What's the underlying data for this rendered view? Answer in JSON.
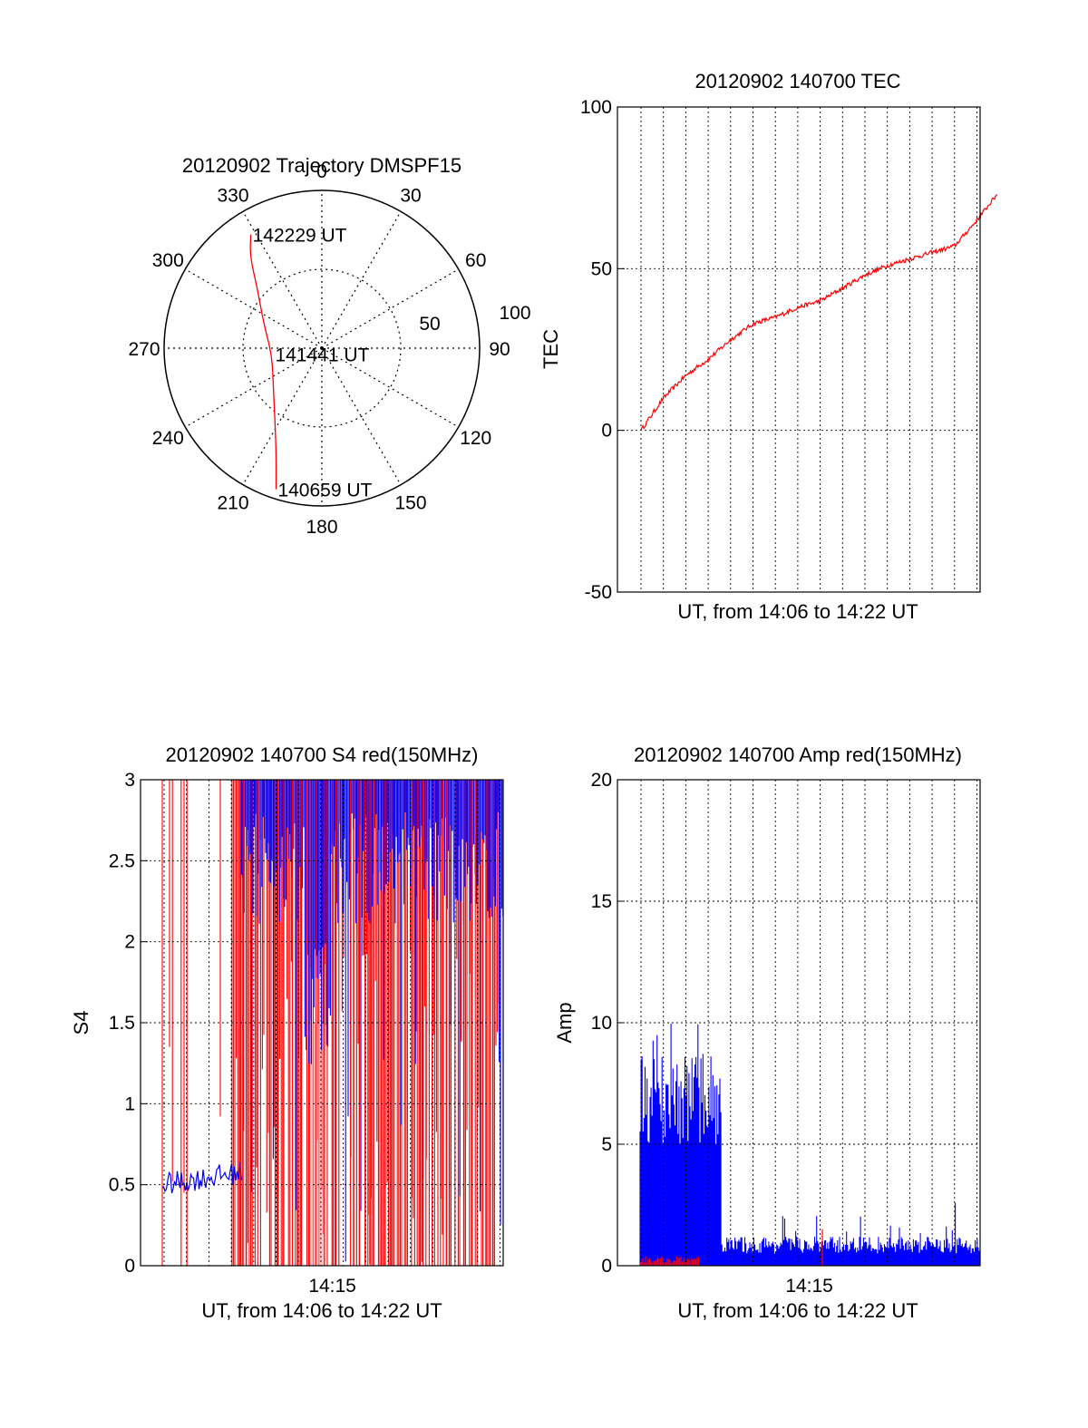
{
  "chart_data": [
    {
      "type": "polar",
      "title": "20120902 Trajectory DMSPF15",
      "angle_labels": [
        "0",
        "30",
        "60",
        "90",
        "120",
        "150",
        "180",
        "210",
        "240",
        "270",
        "300",
        "330"
      ],
      "angle_values": [
        0,
        30,
        60,
        90,
        120,
        150,
        180,
        210,
        240,
        270,
        300,
        330
      ],
      "radial_labels": [
        "50",
        "100"
      ],
      "radial_max": 100,
      "grid": true,
      "track_color": "#ff0000",
      "track_points": [
        {
          "az": 198,
          "zd": 94
        },
        {
          "az": 203,
          "zd": 74
        },
        {
          "az": 212,
          "zd": 56
        },
        {
          "az": 232,
          "zd": 39
        },
        {
          "az": 262,
          "zd": 32
        },
        {
          "az": 293,
          "zd": 40
        },
        {
          "az": 313,
          "zd": 56
        },
        {
          "az": 322,
          "zd": 74
        },
        {
          "az": 328,
          "zd": 85
        }
      ],
      "annotations": [
        {
          "text": "142229 UT",
          "az": 328,
          "zd": 85
        },
        {
          "text": "141441 UT",
          "az": 263,
          "zd": 31
        },
        {
          "text": "140659 UT",
          "az": 198,
          "zd": 94
        }
      ]
    },
    {
      "type": "line",
      "title": "20120902 140700 TEC",
      "xlabel": "UT, from 14:06 to 14:22 UT",
      "ylabel": "TEC",
      "ylim": [
        -50,
        100
      ],
      "yticks": [
        "100",
        "50",
        "0",
        "-50"
      ],
      "ytick_values": [
        100,
        50,
        0,
        -50
      ],
      "grid": true,
      "x_minutes": [
        7,
        8,
        9,
        10,
        11,
        12,
        13,
        14,
        15,
        16,
        17,
        18,
        19,
        20,
        21,
        22,
        22.9
      ],
      "series": [
        {
          "color": "#ff0000",
          "values": [
            0,
            10,
            17,
            22,
            28,
            33,
            35,
            38,
            40,
            44,
            48,
            51,
            53,
            55,
            57,
            65,
            73
          ]
        }
      ]
    },
    {
      "type": "line",
      "title": "20120902 140700 S4 red(150MHz)",
      "xlabel": "UT, from 14:06 to 14:22 UT",
      "ylabel": "S4",
      "ylim": [
        0,
        3
      ],
      "yticks": [
        "3",
        "2.5",
        "2",
        "1.5",
        "1",
        "0.5",
        "0"
      ],
      "ytick_values": [
        3,
        2.5,
        2,
        1.5,
        1,
        0.5,
        0
      ],
      "xticks": [
        "14:15"
      ],
      "xtick_minutes": [
        15
      ],
      "grid": true,
      "series": [
        {
          "color": "#ff0000",
          "values": [
            0,
            3
          ]
        },
        {
          "color": "#0000ff",
          "values": [
            0.5,
            2.7
          ]
        }
      ]
    },
    {
      "type": "line",
      "title": "20120902 140700 Amp red(150MHz)",
      "xlabel": "UT, from 14:06 to 14:22 UT",
      "ylabel": "Amp",
      "ylim": [
        0,
        20
      ],
      "yticks": [
        "20",
        "15",
        "10",
        "5",
        "0"
      ],
      "ytick_values": [
        20,
        15,
        10,
        5,
        0
      ],
      "xticks": [
        "14:15"
      ],
      "xtick_minutes": [
        15
      ],
      "grid": true,
      "series": [
        {
          "color": "#0000ff",
          "values": [
            10,
            1
          ]
        },
        {
          "color": "#ff0000",
          "values": [
            0.3,
            1.5
          ]
        }
      ]
    }
  ]
}
